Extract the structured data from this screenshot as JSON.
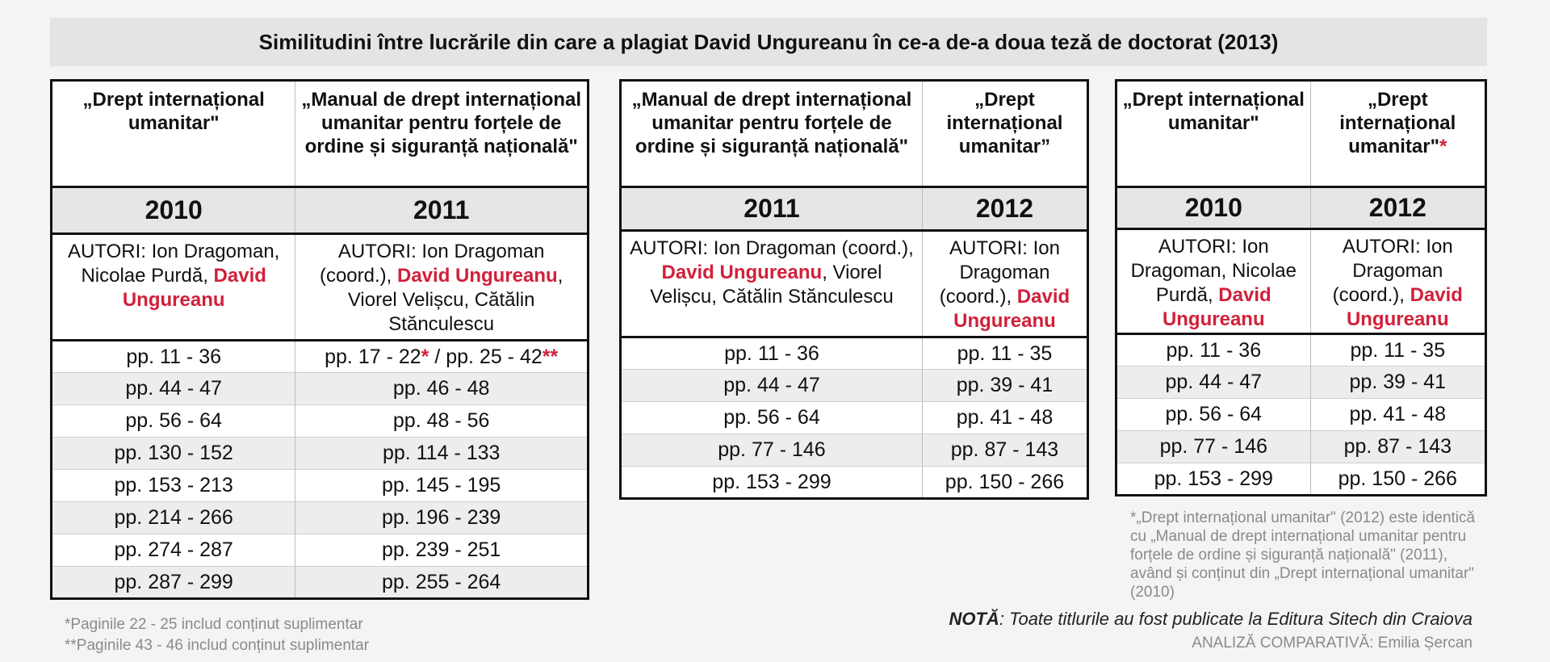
{
  "title": "Similitudini între lucrările din care a plagiat David Ungureanu în ce-a de-a doua teză de doctorat (2013)",
  "tables": [
    {
      "columns": [
        {
          "title": "„Drept internațional umanitar\"",
          "title_mark": "",
          "year": "2010",
          "authors_prefix": "AUTORI: Ion Dragoman, Nicolae Purdă,",
          "authors_highlight": "David Ungureanu",
          "authors_suffix": "",
          "pages": [
            {
              "text": "pp. 11 - 36",
              "mark1": "",
              "text2": "",
              "mark2": ""
            },
            {
              "text": "pp. 44 - 47",
              "mark1": "",
              "text2": "",
              "mark2": ""
            },
            {
              "text": "pp. 56 - 64",
              "mark1": "",
              "text2": "",
              "mark2": ""
            },
            {
              "text": "pp. 130 - 152",
              "mark1": "",
              "text2": "",
              "mark2": ""
            },
            {
              "text": "pp. 153 - 213",
              "mark1": "",
              "text2": "",
              "mark2": ""
            },
            {
              "text": "pp. 214 - 266",
              "mark1": "",
              "text2": "",
              "mark2": ""
            },
            {
              "text": "pp. 274 - 287",
              "mark1": "",
              "text2": "",
              "mark2": ""
            },
            {
              "text": "pp. 287 - 299",
              "mark1": "",
              "text2": "",
              "mark2": ""
            }
          ]
        },
        {
          "title": "„Manual de drept internațional umanitar pentru forțele de ordine și siguranță națională\"",
          "title_mark": "",
          "year": "2011",
          "authors_prefix": "AUTORI: Ion Dragoman (coord.),",
          "authors_highlight": "David Ungureanu",
          "authors_suffix": ", Viorel Velișcu, Cătălin Stănculescu",
          "pages": [
            {
              "text": "pp. 17 - 22",
              "mark1": "*",
              "text2": " / pp. 25 - 42",
              "mark2": "**"
            },
            {
              "text": "pp. 46 - 48",
              "mark1": "",
              "text2": "",
              "mark2": ""
            },
            {
              "text": "pp. 48 - 56",
              "mark1": "",
              "text2": "",
              "mark2": ""
            },
            {
              "text": "pp. 114 - 133",
              "mark1": "",
              "text2": "",
              "mark2": ""
            },
            {
              "text": "pp. 145 - 195",
              "mark1": "",
              "text2": "",
              "mark2": ""
            },
            {
              "text": "pp. 196 - 239",
              "mark1": "",
              "text2": "",
              "mark2": ""
            },
            {
              "text": "pp. 239 - 251",
              "mark1": "",
              "text2": "",
              "mark2": ""
            },
            {
              "text": "pp. 255 - 264",
              "mark1": "",
              "text2": "",
              "mark2": ""
            }
          ]
        }
      ]
    },
    {
      "columns": [
        {
          "title": "„Manual de drept internațional umanitar pentru forțele de ordine și siguranță națională\"",
          "title_mark": "",
          "year": "2011",
          "authors_prefix": "AUTORI: Ion Dragoman (coord.),",
          "authors_highlight": "David Ungureanu",
          "authors_suffix": ", Viorel Velișcu, Cătălin Stănculescu",
          "pages": [
            {
              "text": "pp. 11 - 36",
              "mark1": "",
              "text2": "",
              "mark2": ""
            },
            {
              "text": "pp. 44 - 47",
              "mark1": "",
              "text2": "",
              "mark2": ""
            },
            {
              "text": "pp. 56 - 64",
              "mark1": "",
              "text2": "",
              "mark2": ""
            },
            {
              "text": "pp. 77 - 146",
              "mark1": "",
              "text2": "",
              "mark2": ""
            },
            {
              "text": "pp. 153 - 299",
              "mark1": "",
              "text2": "",
              "mark2": ""
            }
          ]
        },
        {
          "title": "„Drept internațional umanitar”",
          "title_mark": "",
          "year": "2012",
          "authors_prefix": "AUTORI: Ion Dragoman (coord.),",
          "authors_highlight": "David Ungureanu",
          "authors_suffix": "",
          "pages": [
            {
              "text": "pp. 11 - 35",
              "mark1": "",
              "text2": "",
              "mark2": ""
            },
            {
              "text": "pp. 39 - 41",
              "mark1": "",
              "text2": "",
              "mark2": ""
            },
            {
              "text": "pp. 41 - 48",
              "mark1": "",
              "text2": "",
              "mark2": ""
            },
            {
              "text": "pp. 87 - 143",
              "mark1": "",
              "text2": "",
              "mark2": ""
            },
            {
              "text": "pp. 150 - 266",
              "mark1": "",
              "text2": "",
              "mark2": ""
            }
          ]
        }
      ]
    },
    {
      "columns": [
        {
          "title": "„Drept internațional umanitar\"",
          "title_mark": "",
          "year": "2010",
          "authors_prefix": "AUTORI: Ion Dragoman, Nicolae Purdă,",
          "authors_highlight": "David Ungureanu",
          "authors_suffix": "",
          "pages": [
            {
              "text": "pp. 11 - 36",
              "mark1": "",
              "text2": "",
              "mark2": ""
            },
            {
              "text": "pp. 44 - 47",
              "mark1": "",
              "text2": "",
              "mark2": ""
            },
            {
              "text": "pp. 56 - 64",
              "mark1": "",
              "text2": "",
              "mark2": ""
            },
            {
              "text": "pp. 77 - 146",
              "mark1": "",
              "text2": "",
              "mark2": ""
            },
            {
              "text": "pp. 153 - 299",
              "mark1": "",
              "text2": "",
              "mark2": ""
            }
          ]
        },
        {
          "title": "„Drept internațional umanitar\"",
          "title_mark": "*",
          "year": "2012",
          "authors_prefix": "AUTORI: Ion Dragoman (coord.),",
          "authors_highlight": "David Ungureanu",
          "authors_suffix": "",
          "pages": [
            {
              "text": "pp. 11 - 35",
              "mark1": "",
              "text2": "",
              "mark2": ""
            },
            {
              "text": "pp. 39 - 41",
              "mark1": "",
              "text2": "",
              "mark2": ""
            },
            {
              "text": "pp. 41 - 48",
              "mark1": "",
              "text2": "",
              "mark2": ""
            },
            {
              "text": "pp. 87 - 143",
              "mark1": "",
              "text2": "",
              "mark2": ""
            },
            {
              "text": "pp. 150 - 266",
              "mark1": "",
              "text2": "",
              "mark2": ""
            }
          ]
        }
      ]
    }
  ],
  "footnotes": {
    "pages_22_25": "*Paginile 22 - 25 includ conținut suplimentar",
    "pages_43_46": "**Paginile 43 - 46 includ conținut suplimentar",
    "identical": "*„Drept internațional umanitar\" (2012) este identică cu „Manual de drept internațional umanitar pentru forțele de ordine și siguranță națională\" (2011), având și conținut din „Drept internațional umanitar\" (2010)"
  },
  "note": {
    "label": "NOTĂ",
    "text": ": Toate titlurile au fost publicate la Editura Sitech din Craiova"
  },
  "credit": "ANALIZĂ COMPARATIVĂ: Emilia Șercan",
  "colors": {
    "highlight": "#d1203a",
    "border": "#111111",
    "year_band": "#e6e6e6",
    "stripe": "#ededed",
    "muted": "#8a8a8a"
  }
}
